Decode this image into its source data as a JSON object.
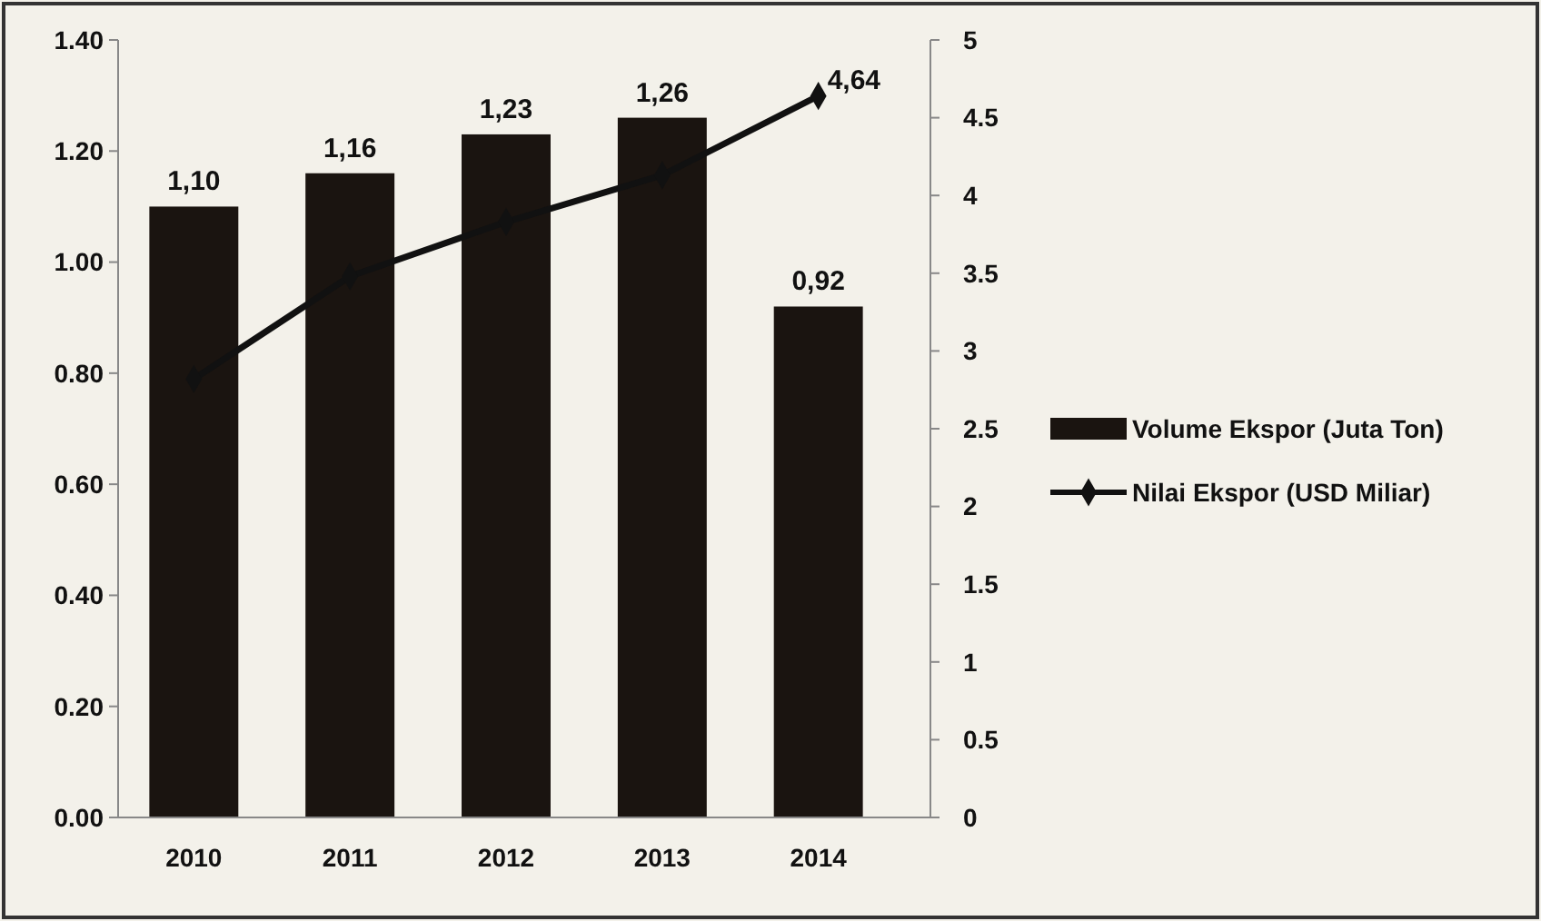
{
  "chart_data": {
    "type": "bar",
    "categories": [
      "2010",
      "2011",
      "2012",
      "2013",
      "2014"
    ],
    "series": [
      {
        "name": "Volume Ekspor (Juta Ton)",
        "color": "#1a1410",
        "values": [
          1.1,
          1.16,
          1.23,
          1.26,
          0.92
        ],
        "value_labels": [
          "1,10",
          "1,16",
          "1,23",
          "1,26",
          "0,92"
        ]
      },
      {
        "name": "Nilai Ekspor (USD Miliar)",
        "type": "line",
        "axis": "y2",
        "color": "#111111",
        "marker": "diamond",
        "values": [
          2.82,
          3.48,
          3.83,
          4.13,
          4.64
        ],
        "value_labels": [
          null,
          null,
          null,
          null,
          "4,64"
        ]
      }
    ],
    "ylim": [
      0,
      1.4
    ],
    "yticks": [
      {
        "value": 0,
        "label": "0.00"
      },
      {
        "value": 0.2,
        "label": "0.20"
      },
      {
        "value": 0.4,
        "label": "0.40"
      },
      {
        "value": 0.6,
        "label": "0.60"
      },
      {
        "value": 0.8,
        "label": "0.80"
      },
      {
        "value": 1,
        "label": "1.00"
      },
      {
        "value": 1.2,
        "label": "1.20"
      },
      {
        "value": 1.4,
        "label": "1.40"
      }
    ],
    "y2lim": [
      0,
      5
    ],
    "y2ticks": [
      0,
      0.5,
      1,
      1.5,
      2,
      2.5,
      3,
      3.5,
      4,
      4.5,
      5
    ],
    "legend": "right",
    "grid": false
  }
}
